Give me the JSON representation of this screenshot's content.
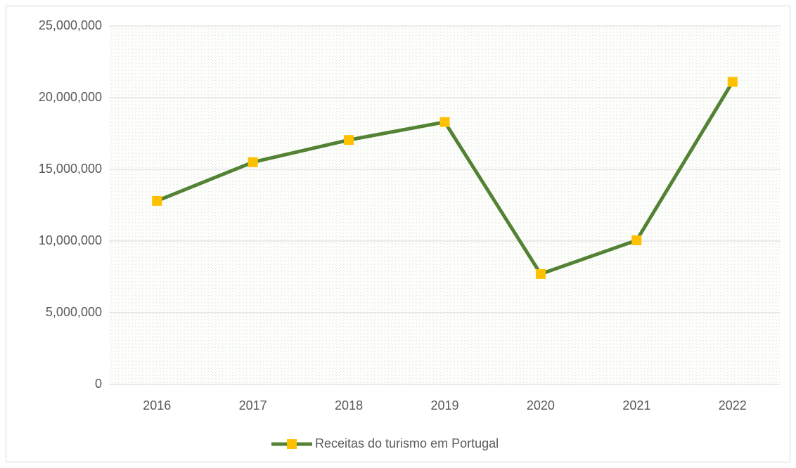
{
  "chart_data": {
    "type": "line",
    "categories": [
      "2016",
      "2017",
      "2018",
      "2019",
      "2020",
      "2021",
      "2022"
    ],
    "series": [
      {
        "name": "Receitas do turismo em Portugal",
        "color": "#548235",
        "marker_color": "#ffc000",
        "values": [
          12800000,
          15500000,
          17050000,
          18300000,
          7700000,
          10050000,
          21100000
        ]
      }
    ],
    "ylim": [
      0,
      25000000
    ],
    "yticks": [
      0,
      {
        "value": 5000000,
        "label": "5,000,000"
      },
      {
        "value": 10000000,
        "label": "10,000,000"
      },
      {
        "value": 15000000,
        "label": "15,000,000"
      },
      {
        "value": 20000000,
        "label": "20,000,000"
      },
      {
        "value": 25000000,
        "label": "25,000,000"
      }
    ],
    "grid": true,
    "legend": "bottom"
  }
}
